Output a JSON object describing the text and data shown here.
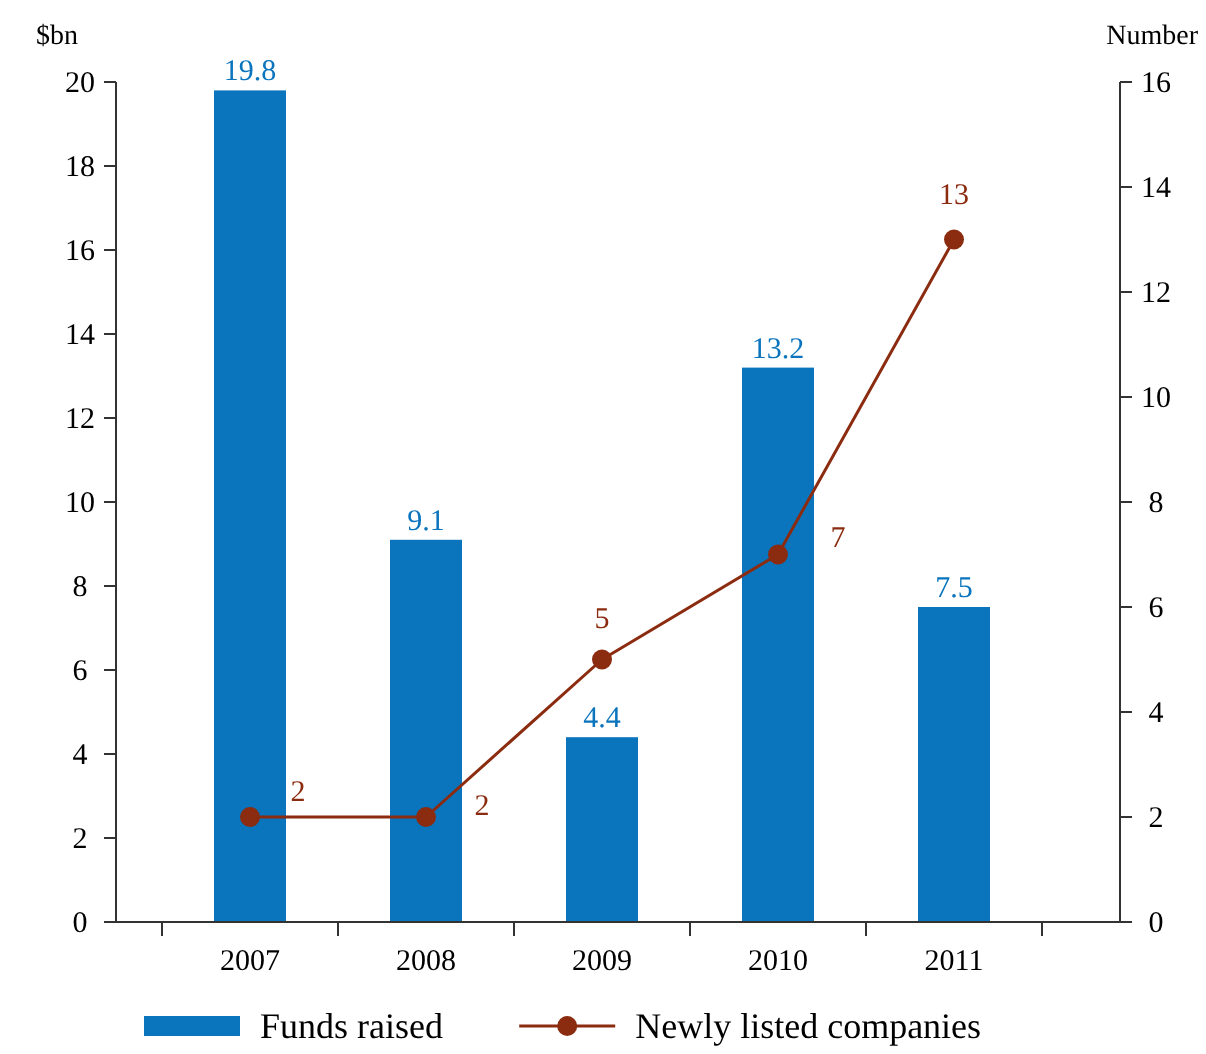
{
  "chart_data": {
    "type": "bar",
    "ylabel": "$bn",
    "y2label": "Number",
    "categories": [
      "2007",
      "2008",
      "2009",
      "2010",
      "2011"
    ],
    "series": [
      {
        "name": "Funds raised",
        "color": "#0a74bd",
        "values": [
          19.8,
          9.1,
          4.4,
          13.2,
          7.5
        ]
      },
      {
        "name": "Newly listed companies",
        "type": "line",
        "axis": "y2",
        "color": "#8b2b0f",
        "values": [
          2,
          2,
          5,
          7,
          13
        ]
      }
    ],
    "ylim": [
      0,
      20
    ],
    "yticks": [
      0,
      2,
      4,
      6,
      8,
      10,
      12,
      14,
      16,
      18,
      20
    ],
    "y2lim": [
      0,
      16
    ],
    "y2ticks": [
      0,
      2,
      4,
      6,
      8,
      10,
      12,
      14,
      16
    ],
    "data_labels": true,
    "legend": "bottom",
    "marker": "circle",
    "grid": false
  }
}
